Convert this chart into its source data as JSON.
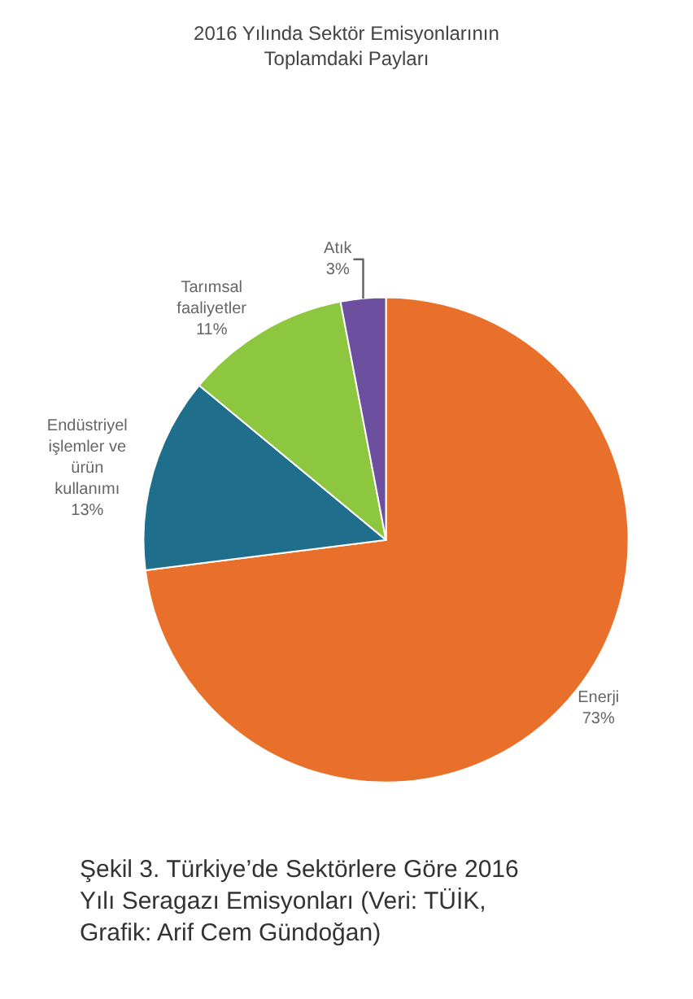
{
  "chart_data": {
    "type": "pie",
    "title": "2016 Yılında Sektör Emisyonlarının Toplamdaki Payları",
    "categories": [
      "Enerji",
      "Endüstriyel işlemler ve ürün kullanımı",
      "Tarımsal faaliyetler",
      "Atık"
    ],
    "values": [
      73,
      13,
      11,
      3
    ],
    "value_labels": [
      "73%",
      "13%",
      "11%",
      "3%"
    ],
    "colors": [
      "#e8702a",
      "#1f6e8c",
      "#8dc63f",
      "#6c4f9e"
    ],
    "annotations": [
      "Şekil 3. Türkiye’de Sektörlere Göre 2016 Yılı Seragazı Emisyonları (Veri: TÜİK, Grafik: Arif Cem Gündoğan)"
    ],
    "legend": false
  }
}
